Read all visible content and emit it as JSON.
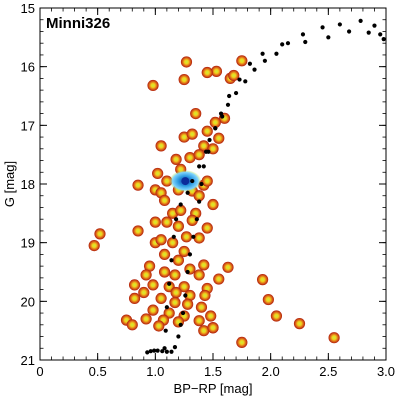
{
  "chart_data": {
    "type": "scatter",
    "title": "Minni326",
    "xlabel": "BP−RP [mag]",
    "ylabel": "G [mag]",
    "xlim": [
      0,
      3.0
    ],
    "ylim": [
      21,
      15
    ],
    "y_inverted": true,
    "x_ticks": [
      0,
      0.5,
      1.0,
      1.5,
      2.0,
      2.5,
      3.0
    ],
    "x_tick_labels": [
      "0",
      "0.5",
      "1.0",
      "1.5",
      "2.0",
      "2.5",
      "3.0"
    ],
    "y_ticks": [
      15,
      16,
      17,
      18,
      19,
      20,
      21
    ],
    "y_tick_labels": [
      "15",
      "16",
      "17",
      "18",
      "19",
      "20",
      "21"
    ],
    "grid": false,
    "colors": {
      "star_outer": "#b01c0c",
      "star_mid": "#e0711a",
      "star_inner": "#f2d11c",
      "star_core": "#c9f03c",
      "isochrone": "#000000",
      "dense_outer": "#2d9be0",
      "dense_inner": "#0a2a9a"
    },
    "series": [
      {
        "kind": "stars",
        "points": [
          [
            1.27,
            15.92
          ],
          [
            1.53,
            16.08
          ],
          [
            1.45,
            16.1
          ],
          [
            1.75,
            15.9
          ],
          [
            1.25,
            16.22
          ],
          [
            0.98,
            16.32
          ],
          [
            1.65,
            16.2
          ],
          [
            1.68,
            16.15
          ],
          [
            1.35,
            16.8
          ],
          [
            1.6,
            16.88
          ],
          [
            1.52,
            16.95
          ],
          [
            1.05,
            17.35
          ],
          [
            1.25,
            17.2
          ],
          [
            1.32,
            17.15
          ],
          [
            1.45,
            17.1
          ],
          [
            1.55,
            17.22
          ],
          [
            1.42,
            17.35
          ],
          [
            1.3,
            17.55
          ],
          [
            1.18,
            17.58
          ],
          [
            1.38,
            17.5
          ],
          [
            1.5,
            17.4
          ],
          [
            1.02,
            17.82
          ],
          [
            1.22,
            17.75
          ],
          [
            1.1,
            17.95
          ],
          [
            0.85,
            18.02
          ],
          [
            1.0,
            18.1
          ],
          [
            1.05,
            18.15
          ],
          [
            1.08,
            18.28
          ],
          [
            1.2,
            18.1
          ],
          [
            1.32,
            18.12
          ],
          [
            1.42,
            18.02
          ],
          [
            1.45,
            17.95
          ],
          [
            1.38,
            18.2
          ],
          [
            1.5,
            18.35
          ],
          [
            1.15,
            18.5
          ],
          [
            1.22,
            18.45
          ],
          [
            1.35,
            18.5
          ],
          [
            1.0,
            18.65
          ],
          [
            1.1,
            18.65
          ],
          [
            1.2,
            18.72
          ],
          [
            1.32,
            18.62
          ],
          [
            1.45,
            18.75
          ],
          [
            0.85,
            18.8
          ],
          [
            1.0,
            19.0
          ],
          [
            1.05,
            18.95
          ],
          [
            1.15,
            19.0
          ],
          [
            1.27,
            18.9
          ],
          [
            1.38,
            18.92
          ],
          [
            0.47,
            19.05
          ],
          [
            0.52,
            18.85
          ],
          [
            1.08,
            19.2
          ],
          [
            1.25,
            19.15
          ],
          [
            0.95,
            19.4
          ],
          [
            1.2,
            19.3
          ],
          [
            1.3,
            19.45
          ],
          [
            1.42,
            19.38
          ],
          [
            0.92,
            19.55
          ],
          [
            1.08,
            19.5
          ],
          [
            1.17,
            19.55
          ],
          [
            1.38,
            19.55
          ],
          [
            1.55,
            19.62
          ],
          [
            1.63,
            19.42
          ],
          [
            0.82,
            19.72
          ],
          [
            0.98,
            19.72
          ],
          [
            1.12,
            19.75
          ],
          [
            1.25,
            19.75
          ],
          [
            1.45,
            19.78
          ],
          [
            0.9,
            19.85
          ],
          [
            1.18,
            19.85
          ],
          [
            1.3,
            19.9
          ],
          [
            1.43,
            19.9
          ],
          [
            0.82,
            19.95
          ],
          [
            1.05,
            19.95
          ],
          [
            1.17,
            20.02
          ],
          [
            1.28,
            20.05
          ],
          [
            1.4,
            20.1
          ],
          [
            0.98,
            20.15
          ],
          [
            1.12,
            20.2
          ],
          [
            1.25,
            20.25
          ],
          [
            1.48,
            20.25
          ],
          [
            0.75,
            20.32
          ],
          [
            0.92,
            20.3
          ],
          [
            1.07,
            20.32
          ],
          [
            1.2,
            20.35
          ],
          [
            1.38,
            20.33
          ],
          [
            0.8,
            20.4
          ],
          [
            1.03,
            20.42
          ],
          [
            1.5,
            20.45
          ],
          [
            1.42,
            20.5
          ],
          [
            1.5,
            20.45
          ],
          [
            1.75,
            20.7
          ],
          [
            1.93,
            19.63
          ],
          [
            1.98,
            19.97
          ],
          [
            2.05,
            20.25
          ],
          [
            2.25,
            20.38
          ],
          [
            2.55,
            20.62
          ]
        ]
      },
      {
        "kind": "isochrone",
        "points": [
          [
            0.93,
            20.87
          ],
          [
            0.96,
            20.85
          ],
          [
            0.99,
            20.84
          ],
          [
            1.02,
            20.84
          ],
          [
            1.06,
            20.85
          ],
          [
            1.1,
            20.86
          ],
          [
            1.14,
            20.86
          ],
          [
            1.17,
            20.78
          ],
          [
            1.2,
            20.6
          ],
          [
            1.22,
            20.4
          ],
          [
            1.24,
            20.2
          ],
          [
            1.26,
            19.9
          ],
          [
            1.28,
            19.5
          ],
          [
            1.3,
            19.2
          ],
          [
            1.33,
            18.9
          ],
          [
            1.36,
            18.6
          ],
          [
            1.38,
            18.3
          ],
          [
            1.4,
            18.0
          ],
          [
            1.42,
            17.7
          ],
          [
            1.44,
            17.45
          ],
          [
            1.47,
            17.25
          ],
          [
            1.52,
            17.05
          ],
          [
            1.58,
            16.85
          ],
          [
            1.63,
            16.65
          ],
          [
            1.7,
            16.45
          ],
          [
            1.78,
            16.25
          ],
          [
            1.86,
            16.05
          ],
          [
            1.95,
            15.9
          ],
          [
            2.05,
            15.78
          ],
          [
            2.15,
            15.6
          ],
          [
            2.28,
            15.45
          ],
          [
            2.45,
            15.33
          ],
          [
            2.6,
            15.28
          ],
          [
            2.78,
            15.22
          ],
          [
            2.9,
            15.3
          ],
          [
            2.95,
            15.45
          ],
          [
            2.98,
            15.53
          ],
          [
            2.85,
            15.42
          ],
          [
            2.68,
            15.4
          ],
          [
            2.5,
            15.5
          ],
          [
            2.3,
            15.58
          ],
          [
            2.1,
            15.62
          ],
          [
            1.93,
            15.78
          ],
          [
            1.82,
            15.95
          ],
          [
            1.73,
            16.22
          ],
          [
            1.64,
            16.5
          ],
          [
            1.57,
            16.8
          ],
          [
            1.52,
            17.05
          ],
          [
            1.46,
            17.45
          ],
          [
            1.38,
            17.7
          ],
          [
            1.32,
            17.95
          ],
          [
            1.28,
            18.15
          ],
          [
            1.22,
            18.35
          ],
          [
            1.18,
            18.6
          ],
          [
            1.16,
            18.9
          ],
          [
            1.14,
            19.3
          ],
          [
            1.12,
            19.7
          ],
          [
            1.1,
            20.1
          ],
          [
            1.09,
            20.5
          ],
          [
            1.08,
            20.8
          ]
        ]
      },
      {
        "kind": "density_peak",
        "points": [
          [
            1.26,
            17.95
          ]
        ]
      }
    ]
  }
}
